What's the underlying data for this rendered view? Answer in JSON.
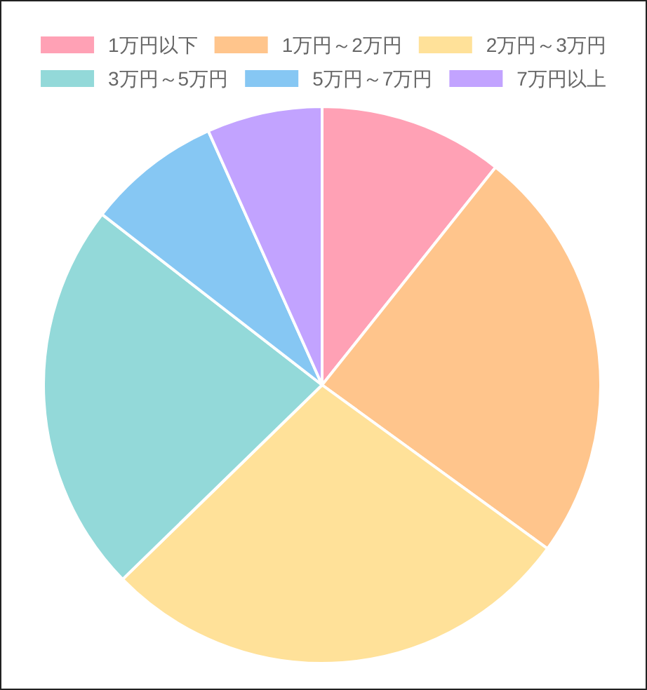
{
  "chart_data": {
    "type": "pie",
    "categories": [
      "1万円以下",
      "1万円～2万円",
      "2万円～3万円",
      "3万円～5万円",
      "5万円～7万円",
      "7万円以上"
    ],
    "values": [
      10.7,
      24.3,
      27.7,
      22.8,
      7.8,
      6.7
    ],
    "colors": [
      "#ffa1b5",
      "#ffc58c",
      "#ffe199",
      "#93d9d9",
      "#86c7f3",
      "#c2a3ff"
    ],
    "legend": "top"
  }
}
